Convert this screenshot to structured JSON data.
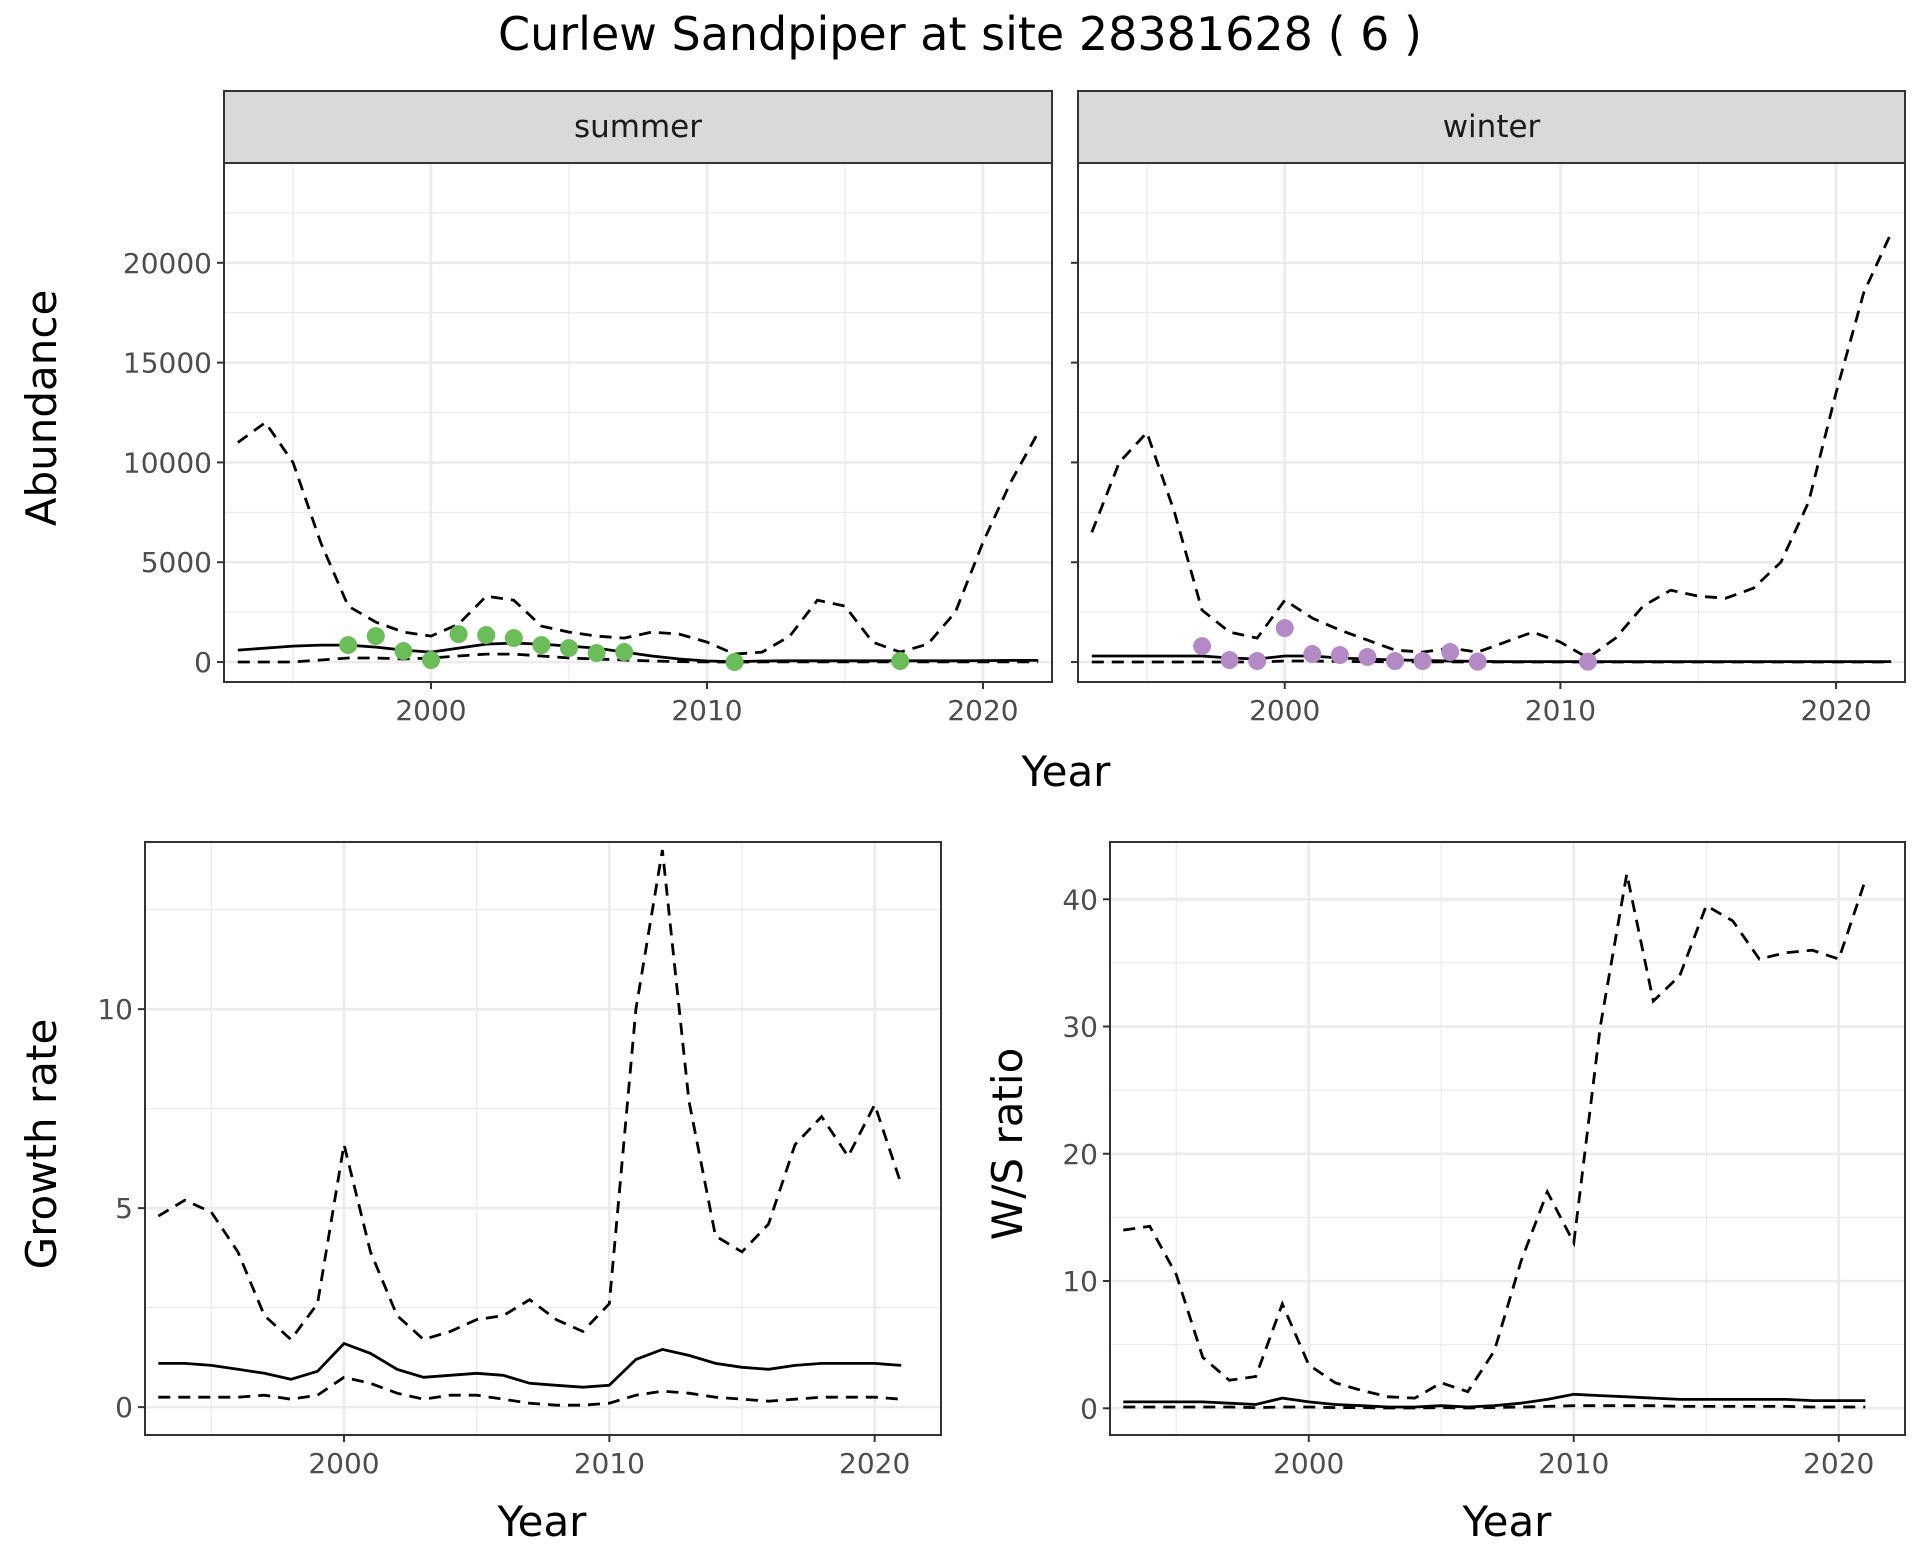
{
  "title": "Curlew Sandpiper at site 28381628 ( 6 )",
  "colors": {
    "summer_points": "#6bbd5a",
    "winter_points": "#b48ac6",
    "line": "#000000"
  },
  "chart_data": [
    {
      "id": "abundance",
      "type": "line",
      "facets": [
        "summer",
        "winter"
      ],
      "xlabel": "Year",
      "ylabel": "Abundance",
      "xlim": [
        1992.5,
        2022.5
      ],
      "ylim": [
        -1000,
        25000
      ],
      "xticks": [
        2000,
        2010,
        2020
      ],
      "yticks": [
        0,
        5000,
        10000,
        15000,
        20000
      ],
      "grid": true,
      "panels": [
        {
          "facet": "summer",
          "point_color": "#6bbd5a",
          "years": [
            1993,
            1994,
            1995,
            1996,
            1997,
            1998,
            1999,
            2000,
            2001,
            2002,
            2003,
            2004,
            2005,
            2006,
            2007,
            2008,
            2009,
            2010,
            2011,
            2012,
            2013,
            2014,
            2015,
            2016,
            2017,
            2018,
            2019,
            2020,
            2021,
            2022
          ],
          "estimate": [
            600,
            700,
            800,
            850,
            850,
            750,
            600,
            500,
            700,
            900,
            950,
            900,
            800,
            700,
            500,
            300,
            150,
            50,
            20,
            50,
            60,
            60,
            60,
            60,
            60,
            60,
            60,
            70,
            80,
            80
          ],
          "lower": [
            0,
            0,
            0,
            100,
            200,
            200,
            150,
            200,
            300,
            400,
            400,
            300,
            200,
            150,
            100,
            50,
            20,
            5,
            2,
            5,
            5,
            5,
            5,
            5,
            5,
            5,
            5,
            5,
            5,
            5
          ],
          "upper": [
            11000,
            12000,
            10000,
            6000,
            2800,
            2000,
            1500,
            1300,
            1900,
            3300,
            3100,
            1800,
            1500,
            1300,
            1200,
            1500,
            1400,
            1000,
            400,
            500,
            1300,
            3100,
            2800,
            1000,
            500,
            900,
            2500,
            6000,
            9000,
            11500
          ],
          "observed": [
            {
              "year": 1997,
              "value": 850
            },
            {
              "year": 1998,
              "value": 1300
            },
            {
              "year": 1999,
              "value": 550
            },
            {
              "year": 2000,
              "value": 100
            },
            {
              "year": 2001,
              "value": 1400
            },
            {
              "year": 2002,
              "value": 1350
            },
            {
              "year": 2003,
              "value": 1200
            },
            {
              "year": 2004,
              "value": 850
            },
            {
              "year": 2005,
              "value": 700
            },
            {
              "year": 2006,
              "value": 450
            },
            {
              "year": 2007,
              "value": 500
            },
            {
              "year": 2011,
              "value": 0
            },
            {
              "year": 2017,
              "value": 50
            }
          ]
        },
        {
          "facet": "winter",
          "point_color": "#b48ac6",
          "years": [
            1993,
            1994,
            1995,
            1996,
            1997,
            1998,
            1999,
            2000,
            2001,
            2002,
            2003,
            2004,
            2005,
            2006,
            2007,
            2008,
            2009,
            2010,
            2011,
            2012,
            2013,
            2014,
            2015,
            2016,
            2017,
            2018,
            2019,
            2020,
            2021,
            2022
          ],
          "estimate": [
            300,
            300,
            300,
            300,
            300,
            200,
            150,
            300,
            300,
            200,
            150,
            100,
            80,
            50,
            30,
            20,
            20,
            20,
            20,
            20,
            20,
            20,
            20,
            20,
            20,
            20,
            20,
            20,
            20,
            20
          ],
          "lower": [
            0,
            0,
            0,
            0,
            0,
            0,
            0,
            50,
            50,
            30,
            20,
            10,
            5,
            5,
            2,
            2,
            2,
            2,
            2,
            2,
            2,
            2,
            2,
            2,
            2,
            2,
            2,
            2,
            2,
            2
          ],
          "upper": [
            6500,
            10000,
            11500,
            7500,
            2600,
            1500,
            1200,
            3100,
            2200,
            1600,
            1100,
            600,
            500,
            700,
            500,
            1000,
            1500,
            1000,
            200,
            1200,
            2800,
            3600,
            3300,
            3200,
            3700,
            5000,
            8000,
            13500,
            18500,
            21500
          ],
          "observed": [
            {
              "year": 1997,
              "value": 800
            },
            {
              "year": 1998,
              "value": 100
            },
            {
              "year": 1999,
              "value": 50
            },
            {
              "year": 2000,
              "value": 1700
            },
            {
              "year": 2001,
              "value": 400
            },
            {
              "year": 2002,
              "value": 350
            },
            {
              "year": 2003,
              "value": 250
            },
            {
              "year": 2004,
              "value": 50
            },
            {
              "year": 2005,
              "value": 50
            },
            {
              "year": 2006,
              "value": 500
            },
            {
              "year": 2007,
              "value": 20
            },
            {
              "year": 2011,
              "value": 20
            }
          ]
        }
      ]
    },
    {
      "id": "growth",
      "type": "line",
      "xlabel": "Year",
      "ylabel": "Growth rate",
      "xlim": [
        1992.5,
        2022.5
      ],
      "ylim": [
        -0.7,
        14.2
      ],
      "xticks": [
        2000,
        2010,
        2020
      ],
      "yticks": [
        0,
        5,
        10
      ],
      "grid": true,
      "years": [
        1993,
        1994,
        1995,
        1996,
        1997,
        1998,
        1999,
        2000,
        2001,
        2002,
        2003,
        2004,
        2005,
        2006,
        2007,
        2008,
        2009,
        2010,
        2011,
        2012,
        2013,
        2014,
        2015,
        2016,
        2017,
        2018,
        2019,
        2020,
        2021
      ],
      "estimate": [
        1.1,
        1.1,
        1.05,
        0.95,
        0.85,
        0.7,
        0.9,
        1.6,
        1.35,
        0.95,
        0.75,
        0.8,
        0.85,
        0.8,
        0.6,
        0.55,
        0.5,
        0.55,
        1.2,
        1.45,
        1.3,
        1.1,
        1.0,
        0.95,
        1.05,
        1.1,
        1.1,
        1.1,
        1.05
      ],
      "lower": [
        0.25,
        0.25,
        0.25,
        0.25,
        0.3,
        0.2,
        0.3,
        0.75,
        0.6,
        0.35,
        0.2,
        0.3,
        0.3,
        0.2,
        0.1,
        0.05,
        0.05,
        0.1,
        0.3,
        0.4,
        0.35,
        0.25,
        0.2,
        0.15,
        0.2,
        0.25,
        0.25,
        0.25,
        0.2
      ],
      "upper": [
        4.8,
        5.2,
        4.9,
        3.9,
        2.3,
        1.7,
        2.6,
        6.6,
        3.9,
        2.3,
        1.7,
        1.9,
        2.2,
        2.3,
        2.7,
        2.2,
        1.9,
        2.6,
        10.0,
        14.0,
        7.7,
        4.3,
        3.9,
        4.6,
        6.6,
        7.3,
        6.3,
        7.6,
        5.6
      ]
    },
    {
      "id": "ws_ratio",
      "type": "line",
      "xlabel": "Year",
      "ylabel": "W/S ratio",
      "xlim": [
        1992.5,
        2022.5
      ],
      "ylim": [
        -2.1,
        44.5
      ],
      "xticks": [
        2000,
        2010,
        2020
      ],
      "yticks": [
        0,
        10,
        20,
        30,
        40
      ],
      "grid": true,
      "years": [
        1993,
        1994,
        1995,
        1996,
        1997,
        1998,
        1999,
        2000,
        2001,
        2002,
        2003,
        2004,
        2005,
        2006,
        2007,
        2008,
        2009,
        2010,
        2011,
        2012,
        2013,
        2014,
        2015,
        2016,
        2017,
        2018,
        2019,
        2020,
        2021
      ],
      "estimate": [
        0.5,
        0.5,
        0.5,
        0.5,
        0.4,
        0.3,
        0.8,
        0.5,
        0.3,
        0.2,
        0.1,
        0.1,
        0.2,
        0.1,
        0.2,
        0.4,
        0.7,
        1.1,
        1.0,
        0.9,
        0.8,
        0.7,
        0.7,
        0.7,
        0.7,
        0.7,
        0.6,
        0.6,
        0.6
      ],
      "lower": [
        0.1,
        0.1,
        0.1,
        0.1,
        0.1,
        0.05,
        0.1,
        0.1,
        0.05,
        0.05,
        0.02,
        0.02,
        0.05,
        0.02,
        0.05,
        0.1,
        0.15,
        0.2,
        0.2,
        0.2,
        0.2,
        0.15,
        0.15,
        0.15,
        0.15,
        0.15,
        0.1,
        0.1,
        0.1
      ],
      "upper": [
        14.0,
        14.3,
        10.5,
        4.0,
        2.2,
        2.5,
        8.2,
        3.4,
        2.0,
        1.4,
        0.9,
        0.8,
        2.0,
        1.3,
        4.5,
        11.5,
        17.0,
        13.0,
        30.0,
        42.0,
        32.0,
        34.0,
        39.5,
        38.3,
        35.3,
        35.8,
        36.0,
        35.3,
        41.5
      ]
    }
  ]
}
